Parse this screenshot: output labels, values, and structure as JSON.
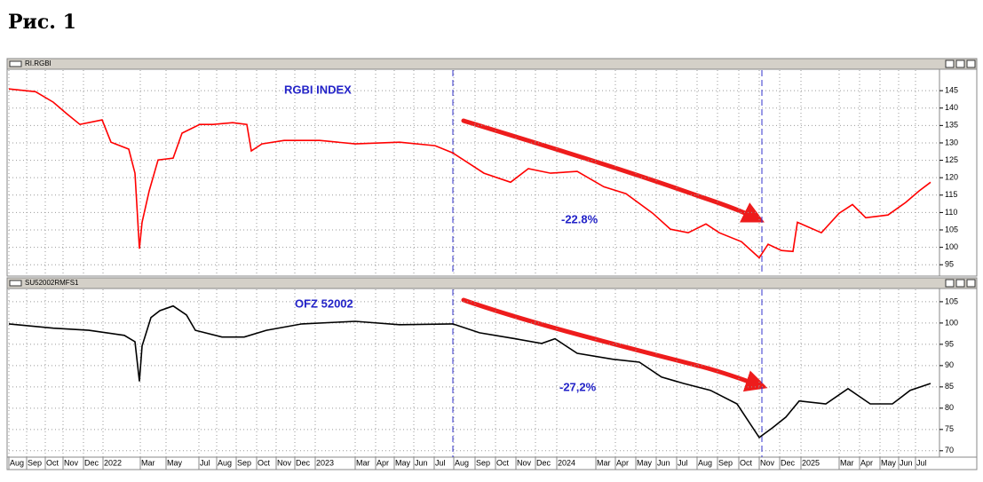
{
  "title": "Рис. 1",
  "chart_data": [
    {
      "type": "line",
      "window_title": "RI.RGBI",
      "annotation": "RGBI INDEX",
      "change_label": "-22.8%",
      "color": "#ff0000",
      "xlim": [
        0,
        104.8
      ],
      "ylim": [
        92,
        150.9
      ],
      "yticks": [
        95,
        100,
        105,
        110,
        115,
        120,
        125,
        130,
        135,
        140,
        145
      ],
      "vlines": [
        50,
        84.8
      ],
      "grid": true,
      "x": [
        0,
        3,
        5,
        6.5,
        8,
        10.5,
        11.5,
        13.5,
        14.2,
        14.7,
        15,
        15.8,
        16.8,
        18.5,
        19.5,
        21.5,
        23,
        25.2,
        26.8,
        27.3,
        28.5,
        31,
        35,
        39,
        44,
        48,
        50,
        52,
        53.5,
        56.5,
        58.5,
        61,
        64,
        67,
        69.5,
        72.5,
        74.5,
        76.5,
        78.5,
        80,
        82.5,
        84.5,
        85.5,
        87,
        88.3,
        88.8,
        91.5,
        93.5,
        95,
        96.5,
        99,
        101,
        102.5,
        103.8
      ],
      "values": [
        145.5,
        144.7,
        141.7,
        138.4,
        135.3,
        136.6,
        130.2,
        128.2,
        121.3,
        99.6,
        107.2,
        116.2,
        125.1,
        125.6,
        132.8,
        135.3,
        135.3,
        135.8,
        135.3,
        127.7,
        129.7,
        130.7,
        130.7,
        129.7,
        130.2,
        129.2,
        127.1,
        123.8,
        121.3,
        118.7,
        122.6,
        121.3,
        121.8,
        117.4,
        115.4,
        109.8,
        105.2,
        104.2,
        106.7,
        104.2,
        101.6,
        97.0,
        100.9,
        99.1,
        98.8,
        107.2,
        104.2,
        109.8,
        112.3,
        108.5,
        109.3,
        112.9,
        116.2,
        118.7
      ]
    },
    {
      "type": "line",
      "window_title": "SU52002RMFS1",
      "annotation": "OFZ 52002",
      "change_label": "-27,2%",
      "color": "#000000",
      "xlim": [
        0,
        104.8
      ],
      "ylim": [
        68.5,
        107.9
      ],
      "yticks": [
        70,
        75,
        80,
        85,
        90,
        95,
        100,
        105
      ],
      "vlines": [
        50,
        84.8
      ],
      "grid": true,
      "xticks": [
        {
          "value": 0,
          "label": "Aug"
        },
        {
          "value": 2,
          "label": "Sep"
        },
        {
          "value": 4.1,
          "label": "Oct"
        },
        {
          "value": 6.1,
          "label": "Nov"
        },
        {
          "value": 8.4,
          "label": "Dec"
        },
        {
          "value": 10.6,
          "label": "2022"
        },
        {
          "value": 14.8,
          "label": "Mar"
        },
        {
          "value": 17.7,
          "label": "May"
        },
        {
          "value": 21.4,
          "label": "Jul"
        },
        {
          "value": 23.4,
          "label": "Aug"
        },
        {
          "value": 25.6,
          "label": "Sep"
        },
        {
          "value": 27.9,
          "label": "Oct"
        },
        {
          "value": 30.1,
          "label": "Nov"
        },
        {
          "value": 32.2,
          "label": "Dec"
        },
        {
          "value": 34.5,
          "label": "2023"
        },
        {
          "value": 39,
          "label": "Mar"
        },
        {
          "value": 41.3,
          "label": "Apr"
        },
        {
          "value": 43.4,
          "label": "May"
        },
        {
          "value": 45.6,
          "label": "Jun"
        },
        {
          "value": 47.9,
          "label": "Jul"
        },
        {
          "value": 50.1,
          "label": "Aug"
        },
        {
          "value": 52.5,
          "label": "Sep"
        },
        {
          "value": 54.8,
          "label": "Oct"
        },
        {
          "value": 57.1,
          "label": "Nov"
        },
        {
          "value": 59.3,
          "label": "Dec"
        },
        {
          "value": 61.7,
          "label": "2024"
        },
        {
          "value": 66.1,
          "label": "Mar"
        },
        {
          "value": 68.3,
          "label": "Apr"
        },
        {
          "value": 70.6,
          "label": "May"
        },
        {
          "value": 72.9,
          "label": "Jun"
        },
        {
          "value": 75.2,
          "label": "Jul"
        },
        {
          "value": 77.5,
          "label": "Aug"
        },
        {
          "value": 79.8,
          "label": "Sep"
        },
        {
          "value": 82.2,
          "label": "Oct"
        },
        {
          "value": 84.5,
          "label": "Nov"
        },
        {
          "value": 86.8,
          "label": "Dec"
        },
        {
          "value": 89.2,
          "label": "2025"
        },
        {
          "value": 93.5,
          "label": "Mar"
        },
        {
          "value": 95.8,
          "label": "Apr"
        },
        {
          "value": 98.1,
          "label": "May"
        },
        {
          "value": 100.2,
          "label": "Jun"
        },
        {
          "value": 102.1,
          "label": "Jul"
        }
      ],
      "x": [
        0,
        5,
        9,
        13,
        14.2,
        14.7,
        15,
        16,
        17,
        18.5,
        20,
        21,
        24,
        26.5,
        29,
        33,
        39,
        44,
        50,
        53,
        57,
        60,
        61.5,
        64,
        68,
        71,
        73.5,
        76,
        79,
        82,
        84.5,
        86,
        87.5,
        89,
        92,
        94.5,
        97,
        99.5,
        101.5,
        103.8
      ],
      "values": [
        99.8,
        98.8,
        98.3,
        97.1,
        95.6,
        86.3,
        94.6,
        101.3,
        102.9,
        104.0,
        101.9,
        98.3,
        96.7,
        96.7,
        98.3,
        99.8,
        100.4,
        99.6,
        99.8,
        97.7,
        96.3,
        95.2,
        96.3,
        92.9,
        91.5,
        90.8,
        87.3,
        85.8,
        84.2,
        81.0,
        73.1,
        75.4,
        77.9,
        81.7,
        81.0,
        84.6,
        81.0,
        81.0,
        84.2,
        85.8
      ]
    }
  ]
}
